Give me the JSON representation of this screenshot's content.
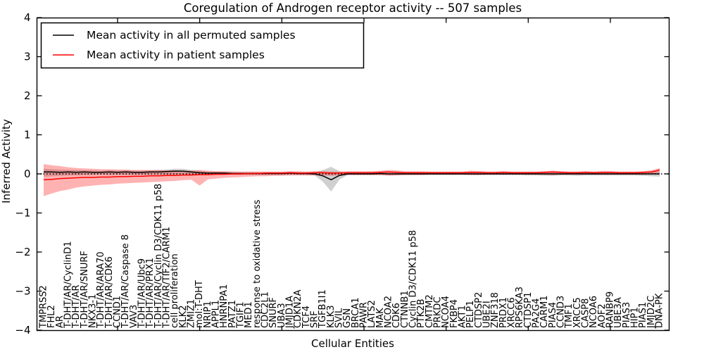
{
  "figure": {
    "title": "Coregulation of Androgen receptor activity -- 507 samples",
    "xlabel": "Cellular Entities",
    "ylabel": "Inferred Activity"
  },
  "legend": {
    "items": [
      {
        "label": "Mean activity in all permuted samples",
        "color": "#000000"
      },
      {
        "label": "Mean activity in patient samples",
        "color": "#ff0000"
      }
    ]
  },
  "chart_data": {
    "type": "line",
    "title": "Coregulation of Androgen receptor activity -- 507 samples",
    "xlabel": "Cellular Entities",
    "ylabel": "Inferred Activity",
    "ylim": [
      -4,
      4
    ],
    "yticks": [
      4,
      3,
      2,
      1,
      0,
      -1,
      -2,
      -3,
      -4
    ],
    "ytick_labels": [
      "4",
      "3",
      "2",
      "1",
      "0",
      "−1",
      "−2",
      "−3",
      "−4"
    ],
    "grid": false,
    "legend_position": "upper left",
    "zero_line": {
      "y": 0,
      "style": "dotted",
      "color": "#000000"
    },
    "xtick_positions": [
      9,
      19,
      29,
      39,
      49,
      59,
      69
    ],
    "categories": [
      "TMPRSS2",
      "FHL2",
      "AR",
      "T-DHT/AR/CyclinD1",
      "T-DHT/AR",
      "T-DHT/AR/SNURF",
      "NKX3-1",
      "T-DHT/AR/ARA70",
      "T-DHT/AR/CDK6",
      "CCND1",
      "T-DHT/AR/Caspase 8",
      "VAV3",
      "T-DHT/AR/Ubc9",
      "T-DHT/AR/PRX1",
      "T-DHT/AR/Cyclin D3/CDK11 p58",
      "T-DHT/AR/TIF2/CARM1",
      "cell proliferation",
      "KLK2",
      "ZMIZ1",
      "mol:T-DHT",
      "NRIP1",
      "APPL1",
      "HNRNPA1",
      "PATZ1",
      "TGIF1",
      "MED1",
      "response to oxidative stress",
      "CDC2L1",
      "SNURF",
      "UBA3",
      "JMJD1A",
      "CDKN2A",
      "TCF4",
      "SRF",
      "TGFB1I1",
      "KLK3",
      "SVIL",
      "GSN",
      "BRCA1",
      "PAWR",
      "LATS2",
      "MAK",
      "NCOA2",
      "CDK6",
      "CTNNB1",
      "Cyclin D3/CDK11 p58",
      "PTK2B",
      "CMTM2",
      "PRKDC",
      "NCOA4",
      "FKBP4",
      "AKT1",
      "PELP1",
      "CTDSP2",
      "UBE2I",
      "ZNF318",
      "PRDX1",
      "XRCC6",
      "RPS6KA3",
      "CTDSP1",
      "PA2G4",
      "CARM1",
      "PIAS4",
      "CCND3",
      "TMF1",
      "XRCC5",
      "CASP8",
      "NCOA6",
      "AOF2",
      "RANBP9",
      "UBE3A",
      "PIAS3",
      "HIP1",
      "PIAS1",
      "JMJD2C",
      "DNA-PK"
    ],
    "series": [
      {
        "name": "Mean activity in all permuted samples",
        "color": "#000000",
        "band_color": "rgba(100,100,100,0.30)",
        "values": [
          0.05,
          0.05,
          0.04,
          0.05,
          0.04,
          0.05,
          0.04,
          0.04,
          0.05,
          0.04,
          0.05,
          0.04,
          0.04,
          0.05,
          0.05,
          0.06,
          0.07,
          0.07,
          0.05,
          0.03,
          0.02,
          0.02,
          0.02,
          0.01,
          0.01,
          0.01,
          0.01,
          0.01,
          0.01,
          0.01,
          0.02,
          0.01,
          0.01,
          0.0,
          -0.05,
          -0.15,
          -0.04,
          0.0,
          0.0,
          0.0,
          0.0,
          0.01,
          0.0,
          0.0,
          0.0,
          0.0,
          0.0,
          0.0,
          0.0,
          0.0,
          0.0,
          0.0,
          0.0,
          0.0,
          0.0,
          0.0,
          0.0,
          0.0,
          0.0,
          0.0,
          0.0,
          0.0,
          0.0,
          0.0,
          0.0,
          0.0,
          0.0,
          0.0,
          0.0,
          0.0,
          0.0,
          0.0,
          0.0,
          0.0,
          0.0,
          0.0
        ],
        "band_upper": [
          0.13,
          0.12,
          0.11,
          0.1,
          0.1,
          0.09,
          0.09,
          0.08,
          0.09,
          0.08,
          0.09,
          0.08,
          0.08,
          0.09,
          0.1,
          0.11,
          0.13,
          0.13,
          0.1,
          0.08,
          0.06,
          0.06,
          0.05,
          0.05,
          0.04,
          0.04,
          0.04,
          0.04,
          0.04,
          0.04,
          0.05,
          0.04,
          0.04,
          0.04,
          0.1,
          0.18,
          0.07,
          0.03,
          0.03,
          0.03,
          0.03,
          0.04,
          0.03,
          0.03,
          0.03,
          0.03,
          0.03,
          0.03,
          0.03,
          0.03,
          0.03,
          0.03,
          0.03,
          0.03,
          0.03,
          0.03,
          0.03,
          0.03,
          0.03,
          0.04,
          0.04,
          0.05,
          0.05,
          0.04,
          0.04,
          0.05,
          0.04,
          0.04,
          0.04,
          0.04,
          0.04,
          0.04,
          0.04,
          0.05,
          0.06,
          0.07
        ],
        "band_lower": [
          -0.07,
          -0.06,
          -0.05,
          -0.04,
          -0.04,
          -0.03,
          -0.03,
          -0.02,
          -0.03,
          -0.02,
          -0.03,
          -0.02,
          -0.02,
          -0.02,
          -0.02,
          -0.02,
          -0.02,
          -0.01,
          -0.02,
          -0.02,
          -0.02,
          -0.02,
          -0.02,
          -0.02,
          -0.02,
          -0.02,
          -0.02,
          -0.02,
          -0.02,
          -0.02,
          -0.02,
          -0.02,
          -0.02,
          -0.04,
          -0.2,
          -0.45,
          -0.15,
          -0.03,
          -0.03,
          -0.03,
          -0.03,
          -0.03,
          -0.03,
          -0.03,
          -0.03,
          -0.03,
          -0.03,
          -0.03,
          -0.03,
          -0.03,
          -0.03,
          -0.03,
          -0.03,
          -0.03,
          -0.03,
          -0.03,
          -0.03,
          -0.03,
          -0.03,
          -0.04,
          -0.04,
          -0.05,
          -0.05,
          -0.04,
          -0.04,
          -0.05,
          -0.04,
          -0.04,
          -0.04,
          -0.04,
          -0.04,
          -0.04,
          -0.04,
          -0.05,
          -0.06,
          -0.07
        ]
      },
      {
        "name": "Mean activity in patient samples",
        "color": "#ff0000",
        "band_color": "rgba(255,0,0,0.30)",
        "values": [
          -0.15,
          -0.14,
          -0.12,
          -0.11,
          -0.1,
          -0.09,
          -0.09,
          -0.08,
          -0.08,
          -0.07,
          -0.07,
          -0.06,
          -0.06,
          -0.05,
          -0.05,
          -0.04,
          -0.04,
          -0.03,
          -0.03,
          -0.02,
          -0.02,
          -0.01,
          -0.01,
          0.0,
          0.0,
          0.01,
          0.01,
          0.02,
          0.02,
          0.02,
          0.03,
          0.02,
          0.02,
          0.03,
          0.03,
          0.02,
          0.02,
          0.03,
          0.03,
          0.03,
          0.03,
          0.04,
          0.05,
          0.04,
          0.03,
          0.03,
          0.03,
          0.03,
          0.03,
          0.03,
          0.03,
          0.03,
          0.04,
          0.04,
          0.03,
          0.03,
          0.04,
          0.03,
          0.03,
          0.03,
          0.03,
          0.04,
          0.05,
          0.04,
          0.03,
          0.03,
          0.04,
          0.03,
          0.04,
          0.04,
          0.03,
          0.03,
          0.03,
          0.04,
          0.05,
          0.1
        ],
        "band_upper": [
          0.25,
          0.22,
          0.2,
          0.17,
          0.15,
          0.14,
          0.13,
          0.12,
          0.12,
          0.11,
          0.11,
          0.1,
          0.1,
          0.1,
          0.1,
          0.09,
          0.09,
          0.08,
          0.08,
          0.1,
          0.08,
          0.07,
          0.07,
          0.06,
          0.06,
          0.06,
          0.06,
          0.06,
          0.06,
          0.06,
          0.07,
          0.07,
          0.06,
          0.07,
          0.07,
          0.06,
          0.06,
          0.07,
          0.07,
          0.07,
          0.07,
          0.08,
          0.1,
          0.09,
          0.07,
          0.07,
          0.07,
          0.06,
          0.06,
          0.06,
          0.06,
          0.06,
          0.08,
          0.07,
          0.06,
          0.06,
          0.07,
          0.06,
          0.06,
          0.06,
          0.06,
          0.07,
          0.08,
          0.07,
          0.06,
          0.06,
          0.07,
          0.06,
          0.07,
          0.07,
          0.06,
          0.06,
          0.06,
          0.07,
          0.09,
          0.15
        ],
        "band_lower": [
          -0.57,
          -0.5,
          -0.44,
          -0.4,
          -0.35,
          -0.32,
          -0.3,
          -0.28,
          -0.27,
          -0.25,
          -0.24,
          -0.23,
          -0.22,
          -0.21,
          -0.2,
          -0.19,
          -0.18,
          -0.16,
          -0.15,
          -0.3,
          -0.14,
          -0.12,
          -0.1,
          -0.09,
          -0.08,
          -0.07,
          -0.06,
          -0.06,
          -0.05,
          -0.05,
          -0.04,
          -0.04,
          -0.04,
          -0.04,
          -0.04,
          -0.05,
          -0.04,
          -0.03,
          -0.03,
          -0.03,
          -0.03,
          -0.03,
          -0.05,
          -0.04,
          -0.03,
          -0.03,
          -0.03,
          -0.02,
          -0.02,
          -0.02,
          -0.02,
          -0.02,
          -0.03,
          -0.03,
          -0.02,
          -0.02,
          -0.02,
          -0.02,
          -0.02,
          -0.02,
          -0.02,
          -0.02,
          -0.03,
          -0.02,
          -0.02,
          -0.02,
          -0.02,
          -0.02,
          -0.02,
          -0.02,
          -0.02,
          -0.02,
          -0.02,
          -0.02,
          0.0,
          0.03
        ]
      }
    ]
  }
}
